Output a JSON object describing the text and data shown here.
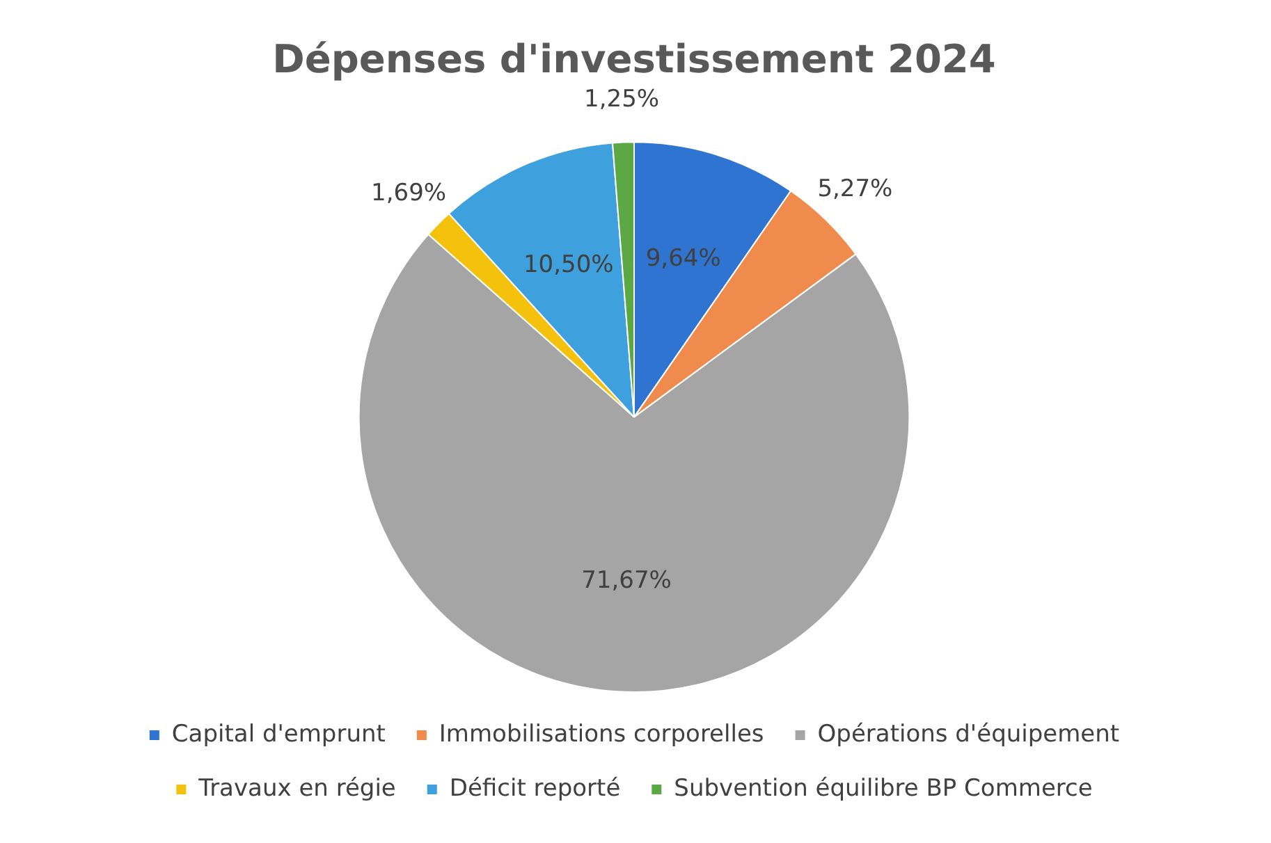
{
  "chart_data": {
    "type": "pie",
    "title": "Dépenses d'investissement 2024",
    "categories": [
      "Capital d'emprunt",
      "Immobilisations corporelles",
      "Opérations d'équipement",
      "Travaux en régie",
      "Déficit reporté",
      "Subvention équilibre BP Commerce"
    ],
    "values": [
      9.64,
      5.27,
      71.67,
      1.69,
      10.5,
      1.25
    ],
    "value_labels": [
      "9,64%",
      "5,27%",
      "71,67%",
      "1,69%",
      "10,50%",
      "1,25%"
    ],
    "colors": [
      "#2e74d0",
      "#ef8b4c",
      "#a5a5a5",
      "#f4c20d",
      "#3ea0dc",
      "#5ca845"
    ],
    "legend": "bottom"
  }
}
